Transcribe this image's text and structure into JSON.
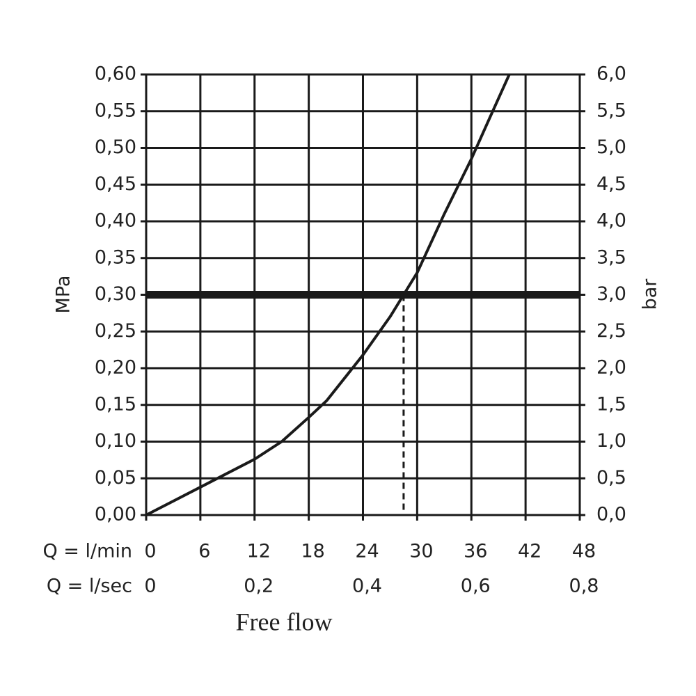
{
  "chart_data": {
    "type": "line",
    "xlabel": "Free flow",
    "ylabel": "MPa",
    "y2label": "bar",
    "x_row_label": "Q = l/min",
    "x2_row_label": "Q = l/sec",
    "x": [
      0,
      6,
      12,
      15,
      18,
      20,
      24,
      27,
      28.5,
      30,
      33,
      36,
      38,
      40.2
    ],
    "values": [
      0,
      0.038,
      0.076,
      0.1,
      0.133,
      0.156,
      0.218,
      0.27,
      0.3,
      0.33,
      0.41,
      0.485,
      0.54,
      0.6
    ],
    "color": "#1a1a1a",
    "reference_y": 0.3,
    "reference_x": 28.5,
    "xlim": [
      0,
      48
    ],
    "xticks": [
      0,
      6,
      12,
      18,
      24,
      30,
      36,
      42,
      48
    ],
    "x2lim": [
      0,
      0.8
    ],
    "x2ticks": [
      0,
      {
        "value": 0.2,
        "label": "0,2"
      },
      {
        "value": 0.4,
        "label": "0,4"
      },
      {
        "value": 0.6,
        "label": "0,6"
      },
      {
        "value": 0.8,
        "label": "0,8"
      }
    ],
    "ylim": [
      0,
      0.6
    ],
    "yticks": [
      {
        "value": 0,
        "label": "0,00"
      },
      {
        "value": 0.05,
        "label": "0,05"
      },
      {
        "value": 0.1,
        "label": "0,10"
      },
      {
        "value": 0.15,
        "label": "0,15"
      },
      {
        "value": 0.2,
        "label": "0,20"
      },
      {
        "value": 0.25,
        "label": "0,25"
      },
      {
        "value": 0.3,
        "label": "0,30"
      },
      {
        "value": 0.35,
        "label": "0,35"
      },
      {
        "value": 0.4,
        "label": "0,40"
      },
      {
        "value": 0.45,
        "label": "0,45"
      },
      {
        "value": 0.5,
        "label": "0,50"
      },
      {
        "value": 0.55,
        "label": "0,55"
      },
      {
        "value": 0.6,
        "label": "0,60"
      }
    ],
    "y2lim": [
      0,
      6
    ],
    "y2ticks": [
      {
        "value": 0,
        "label": "0,0"
      },
      {
        "value": 0.5,
        "label": "0,5"
      },
      {
        "value": 1,
        "label": "1,0"
      },
      {
        "value": 1.5,
        "label": "1,5"
      },
      {
        "value": 2,
        "label": "2,0"
      },
      {
        "value": 2.5,
        "label": "2,5"
      },
      {
        "value": 3,
        "label": "3,0"
      },
      {
        "value": 3.5,
        "label": "3,5"
      },
      {
        "value": 4,
        "label": "4,0"
      },
      {
        "value": 4.5,
        "label": "4,5"
      },
      {
        "value": 5,
        "label": "5,0"
      },
      {
        "value": 5.5,
        "label": "5,5"
      },
      {
        "value": 6,
        "label": "6,0"
      }
    ],
    "grid": true
  }
}
